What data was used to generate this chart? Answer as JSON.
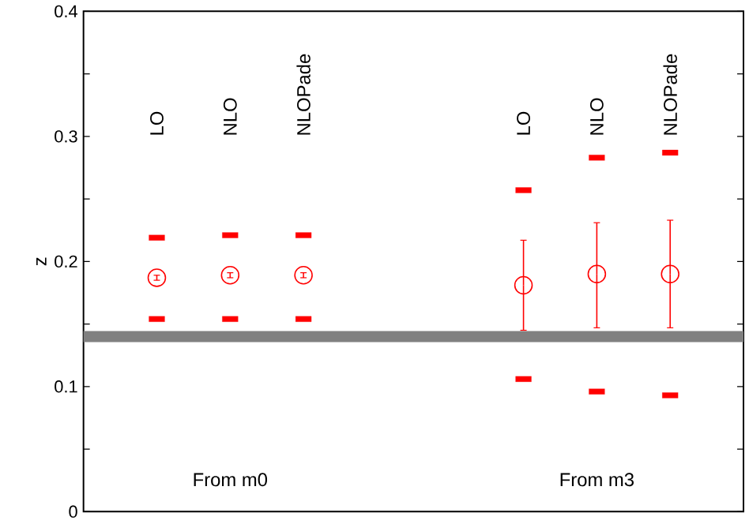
{
  "chart_data": {
    "type": "scatter",
    "ylabel": "z",
    "categories": [
      "LO",
      "NLO",
      "NLOPade",
      null,
      null,
      "LO",
      "NLO",
      "NLOPade"
    ],
    "ylim": [
      0,
      0.4
    ],
    "yticks": [
      0,
      {
        "value": 0.05,
        "label": null
      },
      0.1,
      {
        "value": 0.15,
        "label": null
      },
      0.2,
      {
        "value": 0.25,
        "label": null
      },
      0.3,
      {
        "value": 0.35,
        "label": null
      },
      0.4
    ],
    "series": [
      {
        "color": "#ff0000",
        "marker": "circle",
        "values": [
          0.187,
          0.189,
          0.189,
          null,
          null,
          0.181,
          0.19,
          0.19
        ],
        "errors": [
          0.002,
          0.002,
          0.002,
          null,
          null,
          [
            0.145,
            0.217
          ],
          [
            0.147,
            0.231
          ],
          [
            0.147,
            0.233
          ]
        ]
      },
      {
        "color": "#ff0000",
        "marker": "square",
        "values": [
          0.219,
          0.221,
          0.221,
          null,
          null,
          0.257,
          0.283,
          0.287
        ]
      },
      {
        "color": "#ff0000",
        "marker": "square",
        "values": [
          0.154,
          0.154,
          0.154,
          null,
          null,
          0.106,
          0.096,
          0.093
        ]
      }
    ],
    "ref_lines": [
      {
        "axis": "y",
        "value": 0.14,
        "color": "#808080"
      }
    ],
    "annotations": [
      "From m0",
      "From m3"
    ]
  }
}
